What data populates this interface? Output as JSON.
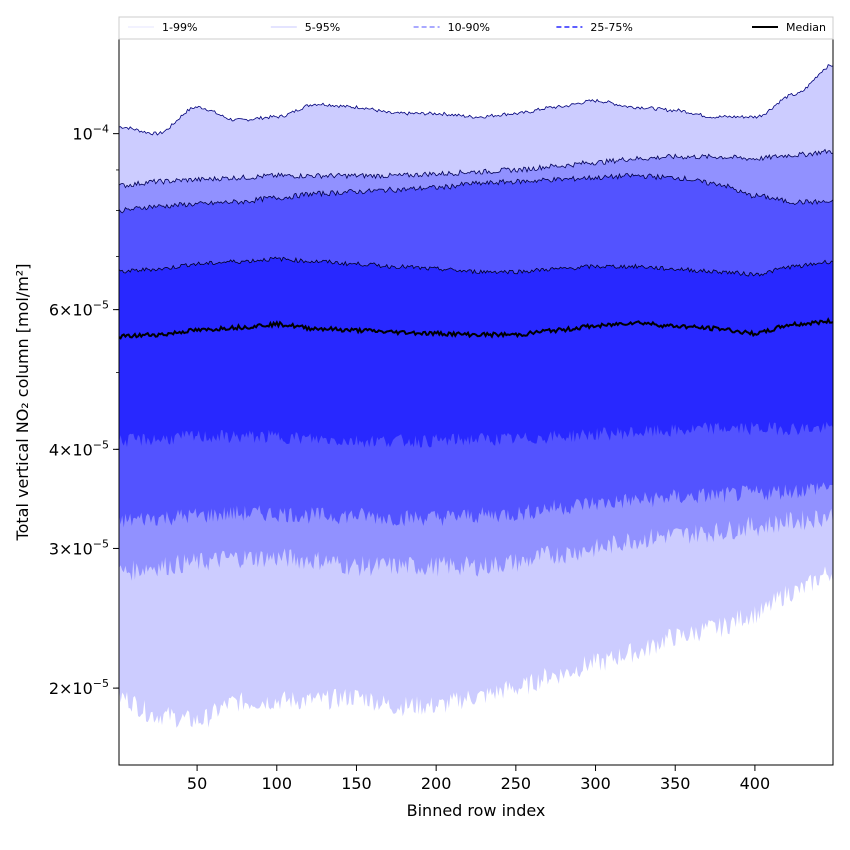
{
  "chart_data": {
    "type": "area",
    "xlabel": "Binned row index",
    "ylabel": "Total vertical NO₂ column [mol/m²]",
    "yscale": "log",
    "xlim": [
      1,
      449
    ],
    "ylim": [
      1.6e-05,
      0.000132
    ],
    "x_ticks": [
      50,
      100,
      150,
      200,
      250,
      300,
      350,
      400
    ],
    "y_ticks": [
      {
        "value": 0.0001,
        "label": "10^-4"
      },
      {
        "value": 6e-05,
        "label": "6 × 10^-5"
      },
      {
        "value": 4e-05,
        "label": "4 × 10^-5"
      },
      {
        "value": 3e-05,
        "label": "3 × 10^-5"
      },
      {
        "value": 2e-05,
        "label": "2 × 10^-5"
      }
    ],
    "legend_position": "top",
    "x": [
      1,
      25,
      50,
      75,
      100,
      125,
      150,
      175,
      200,
      225,
      250,
      275,
      300,
      325,
      350,
      375,
      400,
      425,
      449
    ],
    "bands": [
      {
        "name": "1-99%",
        "fill": "#ccccff",
        "upper": [
          0.000102,
          0.0001,
          0.000108,
          0.000104,
          0.000105,
          0.000109,
          0.000108,
          0.000106,
          0.000106,
          0.000105,
          0.000106,
          0.000108,
          0.00011,
          0.000108,
          0.000107,
          0.000105,
          0.000105,
          0.000112,
          0.000122
        ],
        "lower": [
          1.95e-05,
          1.85e-05,
          1.82e-05,
          1.92e-05,
          1.93e-05,
          1.93e-05,
          1.95e-05,
          1.9e-05,
          1.9e-05,
          1.95e-05,
          2e-05,
          2.08e-05,
          2.15e-05,
          2.22e-05,
          2.32e-05,
          2.38e-05,
          2.48e-05,
          2.65e-05,
          2.8e-05
        ]
      },
      {
        "name": "5-95%",
        "fill": "#9191ff",
        "upper": [
          8.6e-05,
          8.7e-05,
          8.75e-05,
          8.8e-05,
          8.85e-05,
          8.85e-05,
          8.85e-05,
          8.85e-05,
          8.9e-05,
          8.95e-05,
          9e-05,
          9.1e-05,
          9.2e-05,
          9.3e-05,
          9.35e-05,
          9.35e-05,
          9.3e-05,
          9.4e-05,
          9.5e-05
        ],
        "lower": [
          2.8e-05,
          2.85e-05,
          2.88e-05,
          2.92e-05,
          2.92e-05,
          2.9e-05,
          2.85e-05,
          2.85e-05,
          2.85e-05,
          2.85e-05,
          2.88e-05,
          2.95e-05,
          3e-05,
          3.08e-05,
          3.12e-05,
          3.15e-05,
          3.2e-05,
          3.25e-05,
          3.3e-05
        ]
      },
      {
        "name": "10-90%",
        "fill": "#5353ff",
        "upper": [
          8e-05,
          8.1e-05,
          8.15e-05,
          8.2e-05,
          8.3e-05,
          8.4e-05,
          8.45e-05,
          8.5e-05,
          8.55e-05,
          8.65e-05,
          8.7e-05,
          8.75e-05,
          8.8e-05,
          8.85e-05,
          8.8e-05,
          8.65e-05,
          8.35e-05,
          8.2e-05,
          8.2e-05
        ],
        "lower": [
          3.25e-05,
          3.28e-05,
          3.3e-05,
          3.32e-05,
          3.32e-05,
          3.3e-05,
          3.3e-05,
          3.28e-05,
          3.28e-05,
          3.3e-05,
          3.32e-05,
          3.38e-05,
          3.42e-05,
          3.45e-05,
          3.48e-05,
          3.5e-05,
          3.52e-05,
          3.55e-05,
          3.6e-05
        ]
      },
      {
        "name": "25-75%",
        "fill": "#2828ff",
        "upper": [
          6.7e-05,
          6.75e-05,
          6.85e-05,
          6.9e-05,
          6.95e-05,
          6.9e-05,
          6.85e-05,
          6.8e-05,
          6.75e-05,
          6.7e-05,
          6.7e-05,
          6.75e-05,
          6.8e-05,
          6.8e-05,
          6.75e-05,
          6.7e-05,
          6.65e-05,
          6.8e-05,
          6.9e-05
        ],
        "lower": [
          4.1e-05,
          4.12e-05,
          4.15e-05,
          4.15e-05,
          4.15e-05,
          4.12e-05,
          4.1e-05,
          4.1e-05,
          4.1e-05,
          4.12e-05,
          4.12e-05,
          4.15e-05,
          4.18e-05,
          4.2e-05,
          4.22e-05,
          4.25e-05,
          4.25e-05,
          4.25e-05,
          4.25e-05
        ]
      }
    ],
    "median": {
      "name": "Median",
      "color": "#000000",
      "values": [
        5.55e-05,
        5.58e-05,
        5.65e-05,
        5.7e-05,
        5.75e-05,
        5.68e-05,
        5.65e-05,
        5.62e-05,
        5.6e-05,
        5.58e-05,
        5.58e-05,
        5.65e-05,
        5.72e-05,
        5.78e-05,
        5.72e-05,
        5.68e-05,
        5.6e-05,
        5.75e-05,
        5.8e-05
      ]
    },
    "legend": [
      {
        "name": "1-99%",
        "color": "#ccccff",
        "style": "solid",
        "width": 0.5
      },
      {
        "name": "5-95%",
        "color": "#9191ff",
        "style": "solid",
        "width": 0.5
      },
      {
        "name": "10-90%",
        "color": "#5353ff",
        "style": "dashed",
        "width": 1
      },
      {
        "name": "25-75%",
        "color": "#2828ff",
        "style": "dashed",
        "width": 1.5
      },
      {
        "name": "Median",
        "color": "#000000",
        "style": "solid",
        "width": 2
      }
    ]
  }
}
